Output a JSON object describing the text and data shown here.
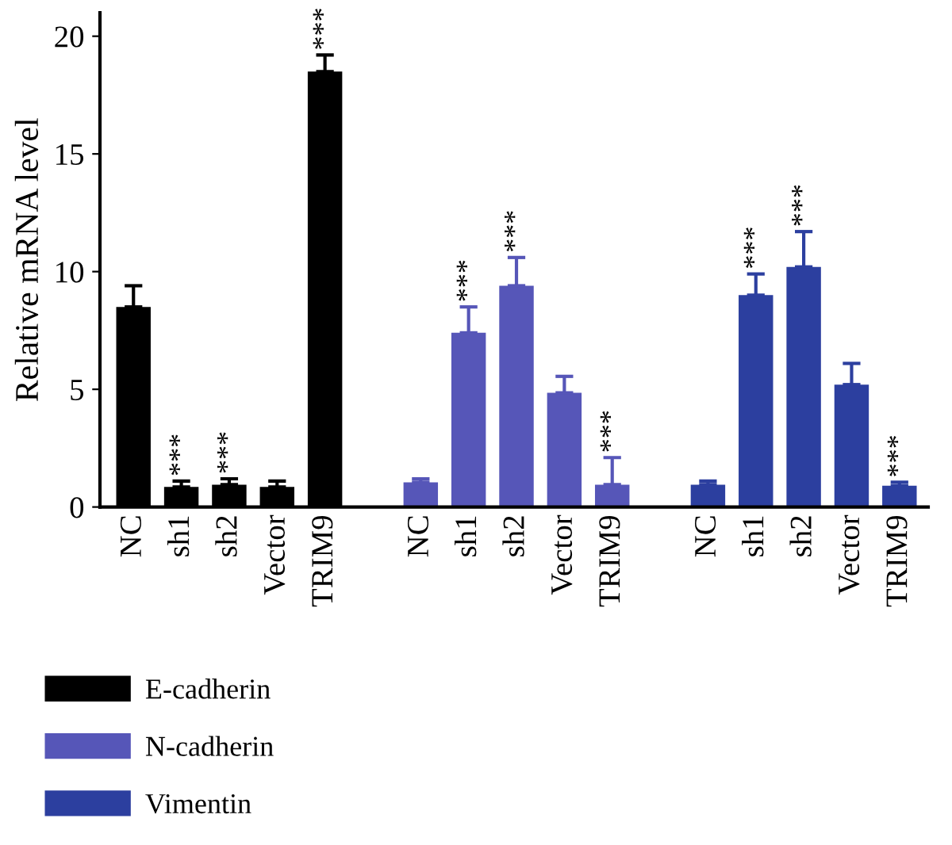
{
  "chart_data": {
    "type": "bar",
    "ylabel": "Relative mRNA level",
    "categories": [
      "NC",
      "sh1",
      "sh2",
      "Vector",
      "TRIM9",
      null,
      "NC",
      "sh1",
      "sh2",
      "Vector",
      "TRIM9",
      null,
      "NC",
      "sh1",
      "sh2",
      "Vector",
      "TRIM9"
    ],
    "series": [
      {
        "name": "E-cadherin",
        "color": "#000000",
        "values": [
          8.5,
          0.85,
          0.95,
          0.85,
          18.5,
          null,
          null,
          null,
          null,
          null,
          null,
          null,
          null,
          null,
          null,
          null,
          null
        ],
        "errors": [
          0.9,
          0.25,
          0.25,
          0.25,
          0.7,
          null,
          null,
          null,
          null,
          null,
          null,
          null,
          null,
          null,
          null,
          null,
          null
        ],
        "value_labels": [
          null,
          "***",
          "***",
          null,
          "***",
          null,
          null,
          null,
          null,
          null,
          null,
          null,
          null,
          null,
          null,
          null,
          null
        ]
      },
      {
        "name": "N-cadherin",
        "color": "#5656b8",
        "values": [
          null,
          null,
          null,
          null,
          null,
          null,
          1.05,
          7.4,
          9.4,
          4.85,
          0.95,
          null,
          null,
          null,
          null,
          null,
          null
        ],
        "errors": [
          null,
          null,
          null,
          null,
          null,
          null,
          0.15,
          1.1,
          1.2,
          0.7,
          1.15,
          null,
          null,
          null,
          null,
          null,
          null
        ],
        "value_labels": [
          null,
          null,
          null,
          null,
          null,
          null,
          null,
          "***",
          "***",
          null,
          "***",
          null,
          null,
          null,
          null,
          null,
          null
        ]
      },
      {
        "name": "Vimentin",
        "color": "#2c3f9f",
        "values": [
          null,
          null,
          null,
          null,
          null,
          null,
          null,
          null,
          null,
          null,
          null,
          null,
          0.95,
          9.0,
          10.2,
          5.2,
          0.9
        ],
        "errors": [
          null,
          null,
          null,
          null,
          null,
          null,
          null,
          null,
          null,
          null,
          null,
          null,
          0.15,
          0.9,
          1.5,
          0.9,
          0.15
        ],
        "value_labels": [
          null,
          null,
          null,
          null,
          null,
          null,
          null,
          null,
          null,
          null,
          null,
          null,
          null,
          "***",
          "***",
          null,
          "***"
        ]
      }
    ],
    "ylim": [
      0,
      21
    ],
    "yticks": [
      0,
      5,
      10,
      15,
      20
    ],
    "grid": false,
    "legend": "bottom left"
  }
}
